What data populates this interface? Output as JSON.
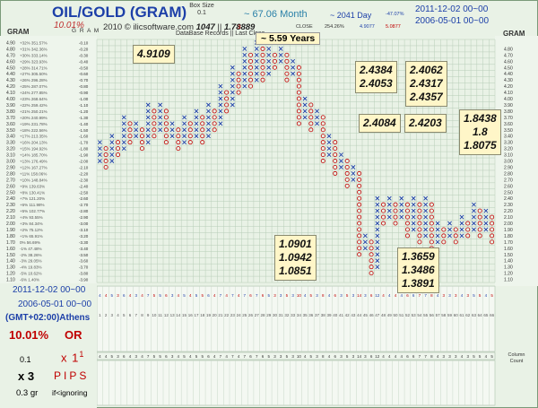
{
  "header": {
    "title": "OIL/GOLD (GRAM)",
    "percent": "10.01%",
    "copyright": "2010 © ilicsoftware.com",
    "records": "1047",
    "last_close": "1.78889",
    "box_size_label": "Box Size",
    "box_size_value": "0.1",
    "reversal_value": "3",
    "db_records_label": "DataBase Records",
    "last_close_label": "Last Close",
    "period_months": "~ 67.06 Month",
    "period_years": "~ 5.59 Years",
    "period_days": "~ 2041 Day",
    "close_label": "CLOSE",
    "close_pct": "254.26%",
    "small_pct": "-47.07%",
    "val_a": "4.9077",
    "val_b": "5.0877",
    "date_end": "2011-12-02 00~00",
    "date_start": "2006-05-01 00~00",
    "gram_left": "GRAM",
    "gram_right": "GRAM",
    "gram_head": "G R A M"
  },
  "bottom_left": {
    "date_end": "2011-12-02 00~00",
    "date_start": "2006-05-01 00~00",
    "timezone": "(GMT+02:00)Athens",
    "percent": "10.01%",
    "or": "OR",
    "box": "0.1",
    "x1": "x 1",
    "sup1": "1",
    "x3": "x 3",
    "pips": "PIPS",
    "gr": "0.3 gr",
    "ign": "if<ignoring",
    "column_label": "Column",
    "count_label": "Count"
  },
  "annotations": [
    {
      "lines": [
        "4.9109"
      ]
    },
    {
      "lines": [
        "2.4384",
        "2.4053"
      ]
    },
    {
      "lines": [
        "2.4062",
        "2.4317",
        "2.4357"
      ]
    },
    {
      "lines": [
        "2.4084"
      ]
    },
    {
      "lines": [
        "2.4203"
      ]
    },
    {
      "lines": [
        "1.8438",
        "1.8",
        "1.8075"
      ]
    },
    {
      "lines": [
        "1.0901",
        "1.0942",
        "1.0851"
      ]
    },
    {
      "lines": [
        "1.3659",
        "1.3486",
        "1.3891"
      ]
    }
  ],
  "colors": {
    "x": "#1c3fa8",
    "o": "#c00000",
    "grid": "#b8cdb8",
    "panel": "#e9f2e6"
  },
  "chart_data": {
    "type": "point-and-figure",
    "title": "OIL/GOLD (GRAM)",
    "ylabel": "GRAM",
    "box_size": 0.1,
    "reversal": 3,
    "y_ticks": [
      "4.90",
      "4.80",
      "4.70",
      "4.60",
      "4.50",
      "4.40",
      "4.30",
      "4.20",
      "4.10",
      "4.00",
      "3.90",
      "3.80",
      "3.70",
      "3.60",
      "3.50",
      "3.40",
      "3.30",
      "3.20",
      "3.10",
      "3.00",
      "2.90",
      "2.80",
      "2.70",
      "2.60",
      "2.50",
      "2.40",
      "2.30",
      "2.20",
      "2.10",
      "2.00",
      "1.90",
      "1.80",
      "1.70",
      "1.60",
      "1.50",
      "1.40",
      "1.30",
      "1.20",
      "1.10"
    ],
    "right_ticks": [
      "4.80",
      "4.70",
      "4.60",
      "4.50",
      "4.40",
      "4.30",
      "4.20",
      "4.10",
      "4.00",
      "3.90",
      "3.80",
      "3.70",
      "3.60",
      "3.50",
      "3.40",
      "3.30",
      "3.20",
      "3.10",
      "3.00",
      "2.90",
      "2.80",
      "2.70",
      "2.60",
      "2.50",
      "2.40",
      "2.30",
      "2.20",
      "2.10",
      "2.00",
      "1.90",
      "1.80",
      "1.70",
      "1.60",
      "1.50",
      "1.40",
      "1.30",
      "1.20",
      "1.10"
    ],
    "pct_ticks": [
      "351.57%",
      "342.36%",
      "333.14%",
      "323.93%",
      "314.71%",
      "305.50%",
      "296.28%",
      "287.07%",
      "277.85%",
      "268.64%",
      "259.42%",
      "250.21%",
      "240.99%",
      "231.78%",
      "222.56%",
      "213.35%",
      "204.13%",
      "194.92%",
      "185.70%",
      "176.49%",
      "167.27%",
      "158.06%",
      "148.84%",
      "139.63%",
      "130.41%",
      "121.20%",
      "111.98%",
      "102.77%",
      "93.55%",
      "84.34%",
      "75.12%",
      "65.91%",
      "56.69%",
      "47.48%",
      "38.26%",
      "29.05%",
      "19.83%",
      "10.62%",
      "1.40%"
    ],
    "lpct_ticks": [
      "+32%",
      "+31%",
      "+30%",
      "+29%",
      "+28%",
      "+27%",
      "+26%",
      "+25%",
      "+24%",
      "+23%",
      "+22%",
      "+21%",
      "+20%",
      "+19%",
      "+18%",
      "+17%",
      "+16%",
      "+15%",
      "+14%",
      "+13%",
      "+12%",
      "+11%",
      "+10%",
      "+9%",
      "+8%",
      "+7%",
      "+6%",
      "+5%",
      "+4%",
      "+3%",
      "+2%",
      "+1%",
      "0%",
      "-1%",
      "-2%",
      "-3%",
      "-4%",
      "-5%",
      "-6%"
    ],
    "diff_ticks": [
      "-0.10",
      "-0.20",
      "-0.30",
      "-0.40",
      "-0.50",
      "-0.60",
      "-0.70",
      "-0.80",
      "-0.90",
      "-1.00",
      "-1.10",
      "-1.20",
      "-1.30",
      "-1.40",
      "-1.50",
      "-1.60",
      "-1.70",
      "-1.80",
      "-1.90",
      "-2.00",
      "-2.10",
      "-2.20",
      "-2.30",
      "-2.40",
      "-2.50",
      "-2.60",
      "-2.70",
      "-2.80",
      "-2.90",
      "-3.00",
      "-3.10",
      "-3.20",
      "-3.30",
      "-3.40",
      "-3.50",
      "-3.60",
      "-3.70",
      "-3.80",
      "-3.90"
    ],
    "columns": [
      {
        "t": "X",
        "lo": 3.0,
        "hi": 3.3
      },
      {
        "t": "O",
        "lo": 2.9,
        "hi": 3.2
      },
      {
        "t": "X",
        "lo": 3.0,
        "hi": 3.4
      },
      {
        "t": "O",
        "lo": 3.1,
        "hi": 3.3
      },
      {
        "t": "X",
        "lo": 3.2,
        "hi": 3.7
      },
      {
        "t": "O",
        "lo": 3.3,
        "hi": 3.6
      },
      {
        "t": "X",
        "lo": 3.4,
        "hi": 3.6
      },
      {
        "t": "O",
        "lo": 3.2,
        "hi": 3.5
      },
      {
        "t": "X",
        "lo": 3.3,
        "hi": 3.9
      },
      {
        "t": "O",
        "lo": 3.4,
        "hi": 3.8
      },
      {
        "t": "X",
        "lo": 3.5,
        "hi": 3.9
      },
      {
        "t": "O",
        "lo": 3.3,
        "hi": 3.8
      },
      {
        "t": "X",
        "lo": 3.4,
        "hi": 3.6
      },
      {
        "t": "O",
        "lo": 3.2,
        "hi": 3.5
      },
      {
        "t": "X",
        "lo": 3.3,
        "hi": 3.7
      },
      {
        "t": "O",
        "lo": 3.3,
        "hi": 3.6
      },
      {
        "t": "X",
        "lo": 3.4,
        "hi": 3.8
      },
      {
        "t": "O",
        "lo": 3.3,
        "hi": 3.7
      },
      {
        "t": "X",
        "lo": 3.4,
        "hi": 3.9
      },
      {
        "t": "O",
        "lo": 3.5,
        "hi": 3.8
      },
      {
        "t": "X",
        "lo": 3.6,
        "hi": 4.2
      },
      {
        "t": "O",
        "lo": 3.8,
        "hi": 4.1
      },
      {
        "t": "X",
        "lo": 3.9,
        "hi": 4.5
      },
      {
        "t": "O",
        "lo": 4.1,
        "hi": 4.4
      },
      {
        "t": "X",
        "lo": 4.2,
        "hi": 4.8
      },
      {
        "t": "O",
        "lo": 4.2,
        "hi": 4.7
      },
      {
        "t": "X",
        "lo": 4.3,
        "hi": 4.9
      },
      {
        "t": "O",
        "lo": 4.3,
        "hi": 4.8
      },
      {
        "t": "X",
        "lo": 4.4,
        "hi": 4.8
      },
      {
        "t": "O",
        "lo": 4.5,
        "hi": 4.7
      },
      {
        "t": "X",
        "lo": 4.6,
        "hi": 4.8
      },
      {
        "t": "O",
        "lo": 4.3,
        "hi": 4.7
      },
      {
        "t": "X",
        "lo": 4.4,
        "hi": 4.6
      },
      {
        "t": "O",
        "lo": 3.6,
        "hi": 4.5
      },
      {
        "t": "X",
        "lo": 3.7,
        "hi": 4.0
      },
      {
        "t": "O",
        "lo": 3.5,
        "hi": 3.9
      },
      {
        "t": "X",
        "lo": 3.6,
        "hi": 3.8
      },
      {
        "t": "O",
        "lo": 3.0,
        "hi": 3.7
      },
      {
        "t": "X",
        "lo": 3.1,
        "hi": 3.4
      },
      {
        "t": "O",
        "lo": 2.8,
        "hi": 3.3
      },
      {
        "t": "X",
        "lo": 2.9,
        "hi": 3.1
      },
      {
        "t": "O",
        "lo": 2.6,
        "hi": 3.0
      },
      {
        "t": "X",
        "lo": 2.7,
        "hi": 2.9
      },
      {
        "t": "O",
        "lo": 1.5,
        "hi": 2.8
      },
      {
        "t": "X",
        "lo": 1.6,
        "hi": 1.8
      },
      {
        "t": "O",
        "lo": 1.2,
        "hi": 1.7
      },
      {
        "t": "X",
        "lo": 1.3,
        "hi": 2.4
      },
      {
        "t": "O",
        "lo": 2.0,
        "hi": 2.3
      },
      {
        "t": "X",
        "lo": 2.1,
        "hi": 2.4
      },
      {
        "t": "O",
        "lo": 2.0,
        "hi": 2.3
      },
      {
        "t": "X",
        "lo": 2.1,
        "hi": 2.4
      },
      {
        "t": "O",
        "lo": 1.8,
        "hi": 2.3
      },
      {
        "t": "X",
        "lo": 1.9,
        "hi": 2.4
      },
      {
        "t": "O",
        "lo": 1.7,
        "hi": 2.3
      },
      {
        "t": "X",
        "lo": 1.8,
        "hi": 2.4
      },
      {
        "t": "O",
        "lo": 1.6,
        "hi": 2.3
      },
      {
        "t": "X",
        "lo": 1.7,
        "hi": 2.0
      },
      {
        "t": "O",
        "lo": 1.7,
        "hi": 1.9
      },
      {
        "t": "X",
        "lo": 1.8,
        "hi": 2.0
      },
      {
        "t": "O",
        "lo": 1.7,
        "hi": 1.9
      },
      {
        "t": "X",
        "lo": 1.8,
        "hi": 2.1
      },
      {
        "t": "O",
        "lo": 1.8,
        "hi": 2.0
      },
      {
        "t": "X",
        "lo": 1.9,
        "hi": 2.3
      },
      {
        "t": "O",
        "lo": 1.8,
        "hi": 2.2
      },
      {
        "t": "X",
        "lo": 1.9,
        "hi": 2.2
      },
      {
        "t": "O",
        "lo": 1.7,
        "hi": 2.1
      }
    ]
  }
}
